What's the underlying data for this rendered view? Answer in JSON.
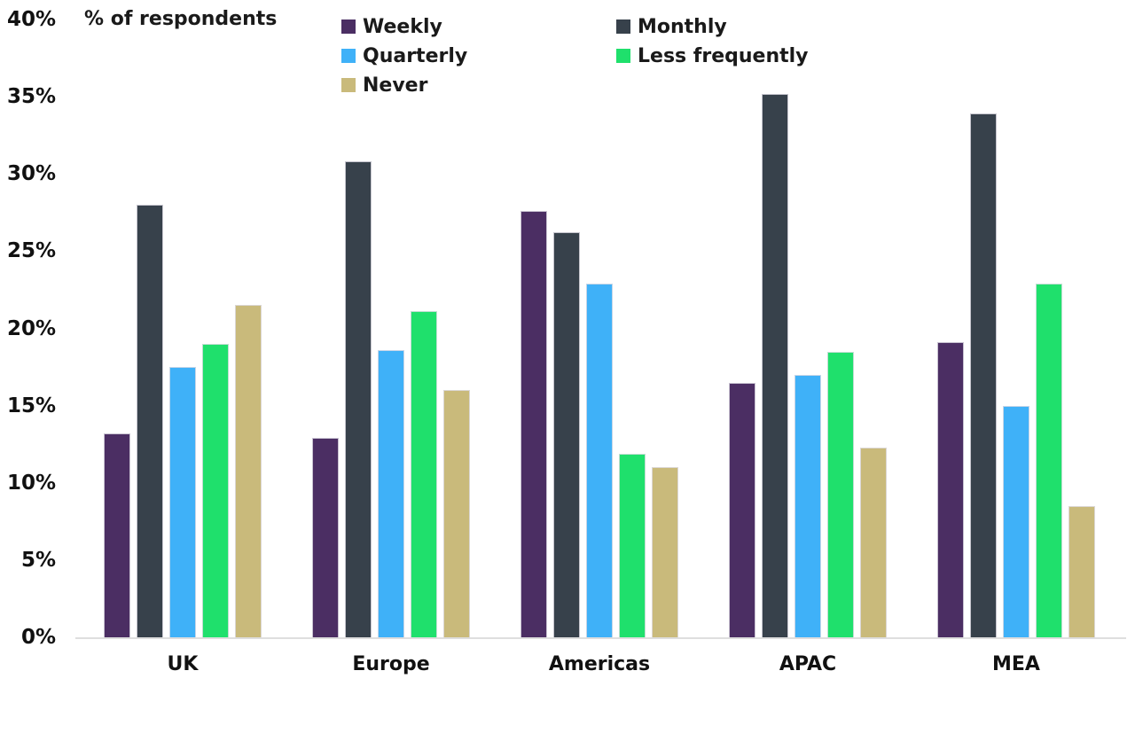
{
  "chart_data": {
    "type": "bar",
    "title": "% of respondents",
    "categories": [
      "UK",
      "Europe",
      "Americas",
      "APAC",
      "MEA"
    ],
    "series": [
      {
        "name": "Weekly",
        "color": "#4B2E63",
        "values": [
          13.2,
          12.9,
          27.6,
          16.5,
          19.1
        ]
      },
      {
        "name": "Monthly",
        "color": "#37414B",
        "values": [
          28.0,
          30.8,
          26.2,
          35.2,
          33.9
        ]
      },
      {
        "name": "Quarterly",
        "color": "#3FB1F8",
        "values": [
          17.5,
          18.6,
          22.9,
          17.0,
          15.0
        ]
      },
      {
        "name": "Less frequently",
        "color": "#1FE06C",
        "values": [
          19.0,
          21.1,
          11.9,
          18.5,
          22.9
        ]
      },
      {
        "name": "Never",
        "color": "#C9BA7B",
        "values": [
          21.5,
          16.0,
          11.0,
          12.3,
          8.5
        ]
      }
    ],
    "ylim": [
      0,
      40
    ],
    "yticks": [
      "0%",
      "5%",
      "10%",
      "15%",
      "20%",
      "25%",
      "30%",
      "35%",
      "40%"
    ],
    "grid": false,
    "legend_position": "top",
    "legend_columns": [
      [
        "Weekly",
        "Quarterly",
        "Never"
      ],
      [
        "Monthly",
        "Less frequently"
      ]
    ]
  },
  "layout_text": {
    "axis_title": "% of respondents"
  }
}
